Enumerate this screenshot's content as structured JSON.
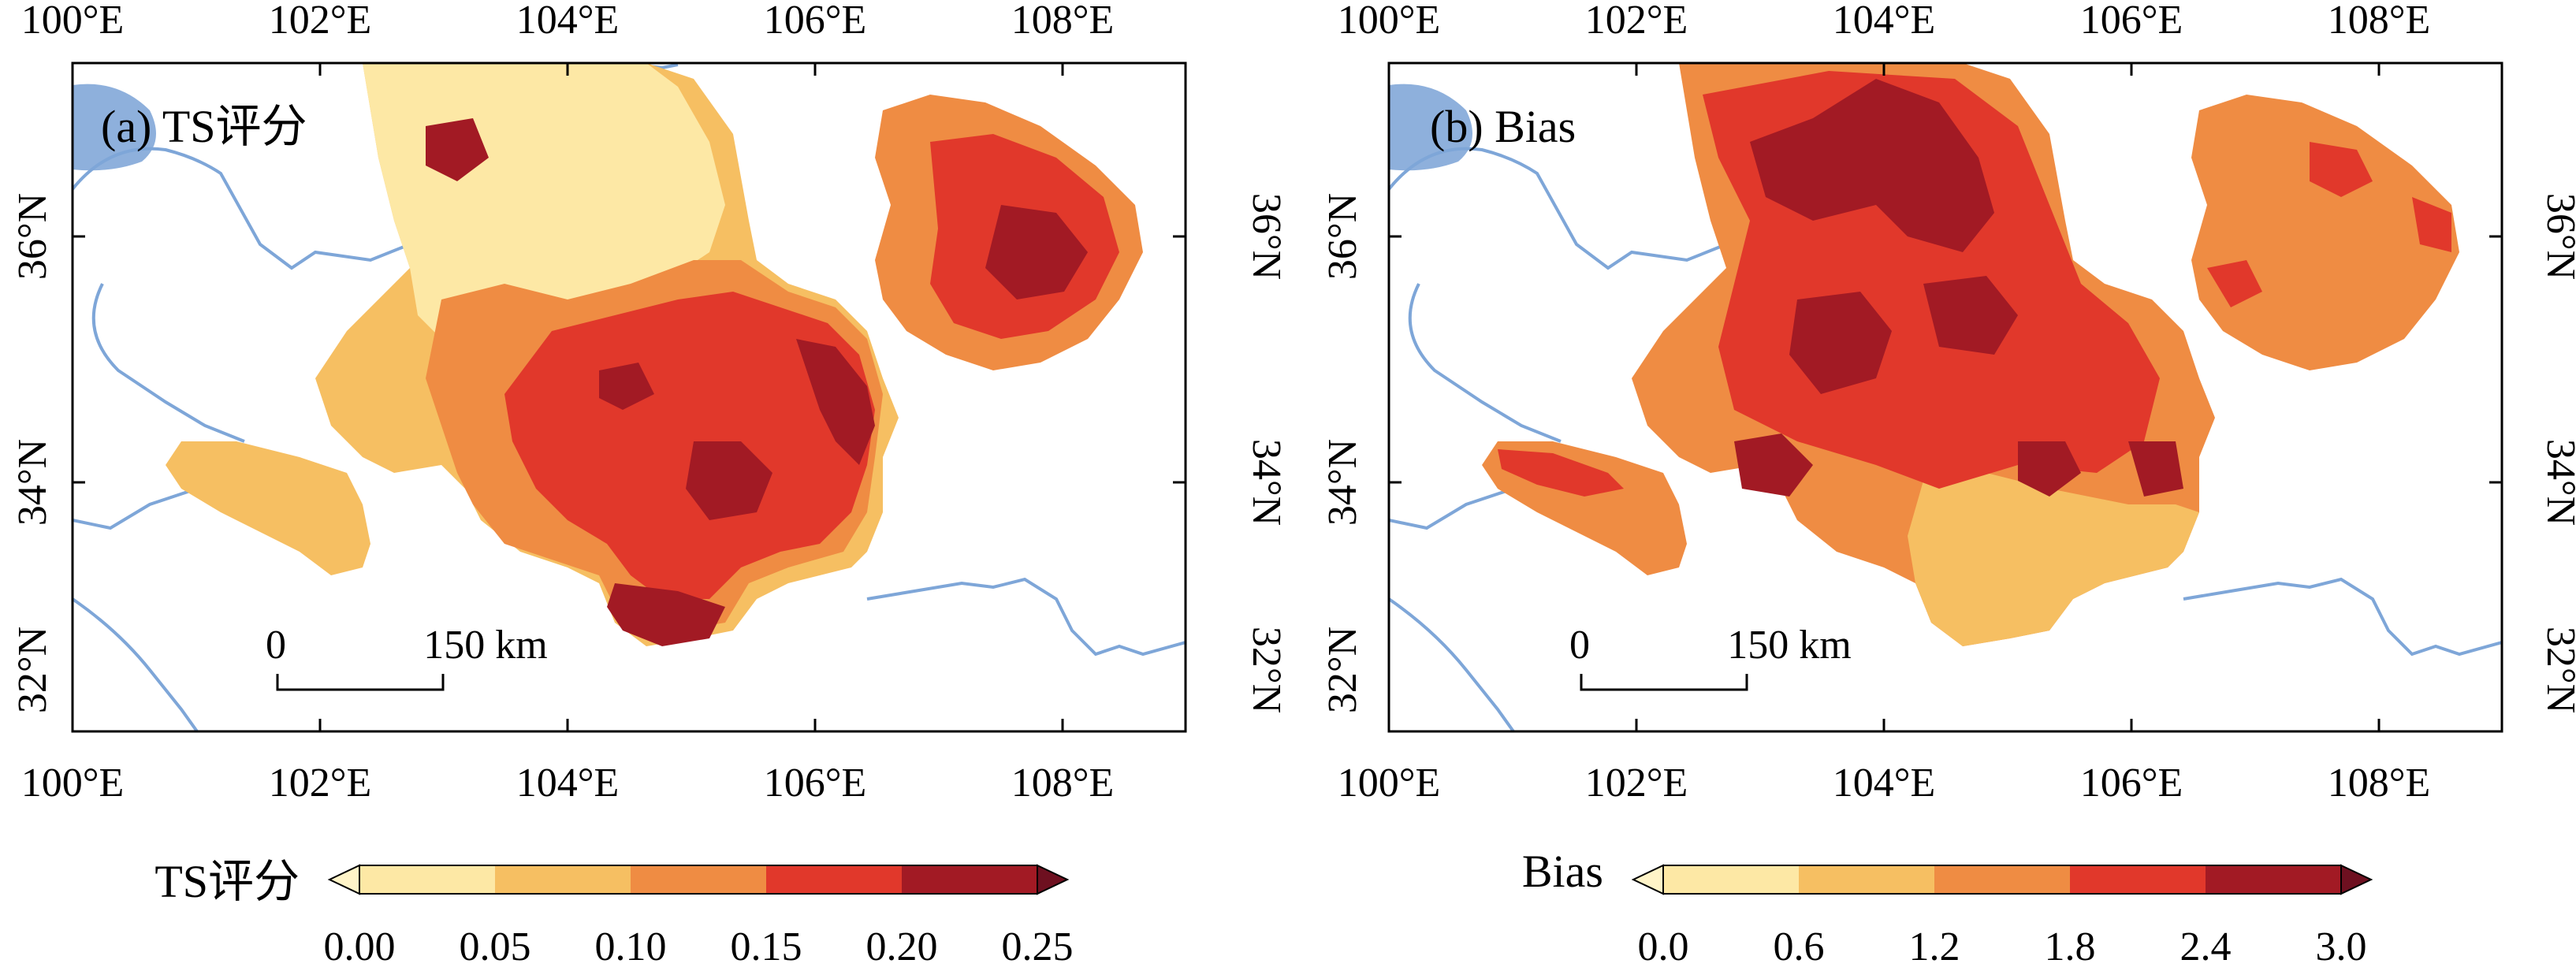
{
  "panels": [
    {
      "id": "a",
      "label": "(a) TS评分",
      "top_lon_labels": [
        "100°E",
        "102°E",
        "104°E",
        "106°E",
        "108°E"
      ],
      "bottom_lon_labels": [
        "100°E",
        "102°E",
        "104°E",
        "106°E",
        "108°E"
      ],
      "lat_labels": [
        "32°N",
        "34°N",
        "36°N"
      ],
      "scale_bar": {
        "start": "0",
        "end": "150 km"
      },
      "colorbar": {
        "title": "TS评分",
        "ticks": [
          "0.00",
          "0.05",
          "0.10",
          "0.15",
          "0.20",
          "0.25"
        ],
        "colors": [
          "#fde8a5",
          "#f6bf62",
          "#ef8c43",
          "#e1382b",
          "#a21a24"
        ],
        "under_color": "#fff4c8",
        "over_color": "#6e1020"
      }
    },
    {
      "id": "b",
      "label": "(b) Bias",
      "top_lon_labels": [
        "100°E",
        "102°E",
        "104°E",
        "106°E",
        "108°E"
      ],
      "bottom_lon_labels": [
        "100°E",
        "102°E",
        "104°E",
        "106°E",
        "108°E"
      ],
      "lat_labels": [
        "32°N",
        "34°N",
        "36°N"
      ],
      "scale_bar": {
        "start": "0",
        "end": "150 km"
      },
      "colorbar": {
        "title": "Bias",
        "ticks": [
          "0.0",
          "0.6",
          "1.2",
          "1.8",
          "2.4",
          "3.0"
        ],
        "colors": [
          "#fde8a5",
          "#f6bf62",
          "#ef8c43",
          "#e1382b",
          "#a21a24"
        ],
        "under_color": "#fff4c8",
        "over_color": "#6e1020"
      }
    }
  ],
  "colors": {
    "river": "#7ea6d8",
    "lake": "#8eb0dc",
    "frame": "#000000"
  }
}
